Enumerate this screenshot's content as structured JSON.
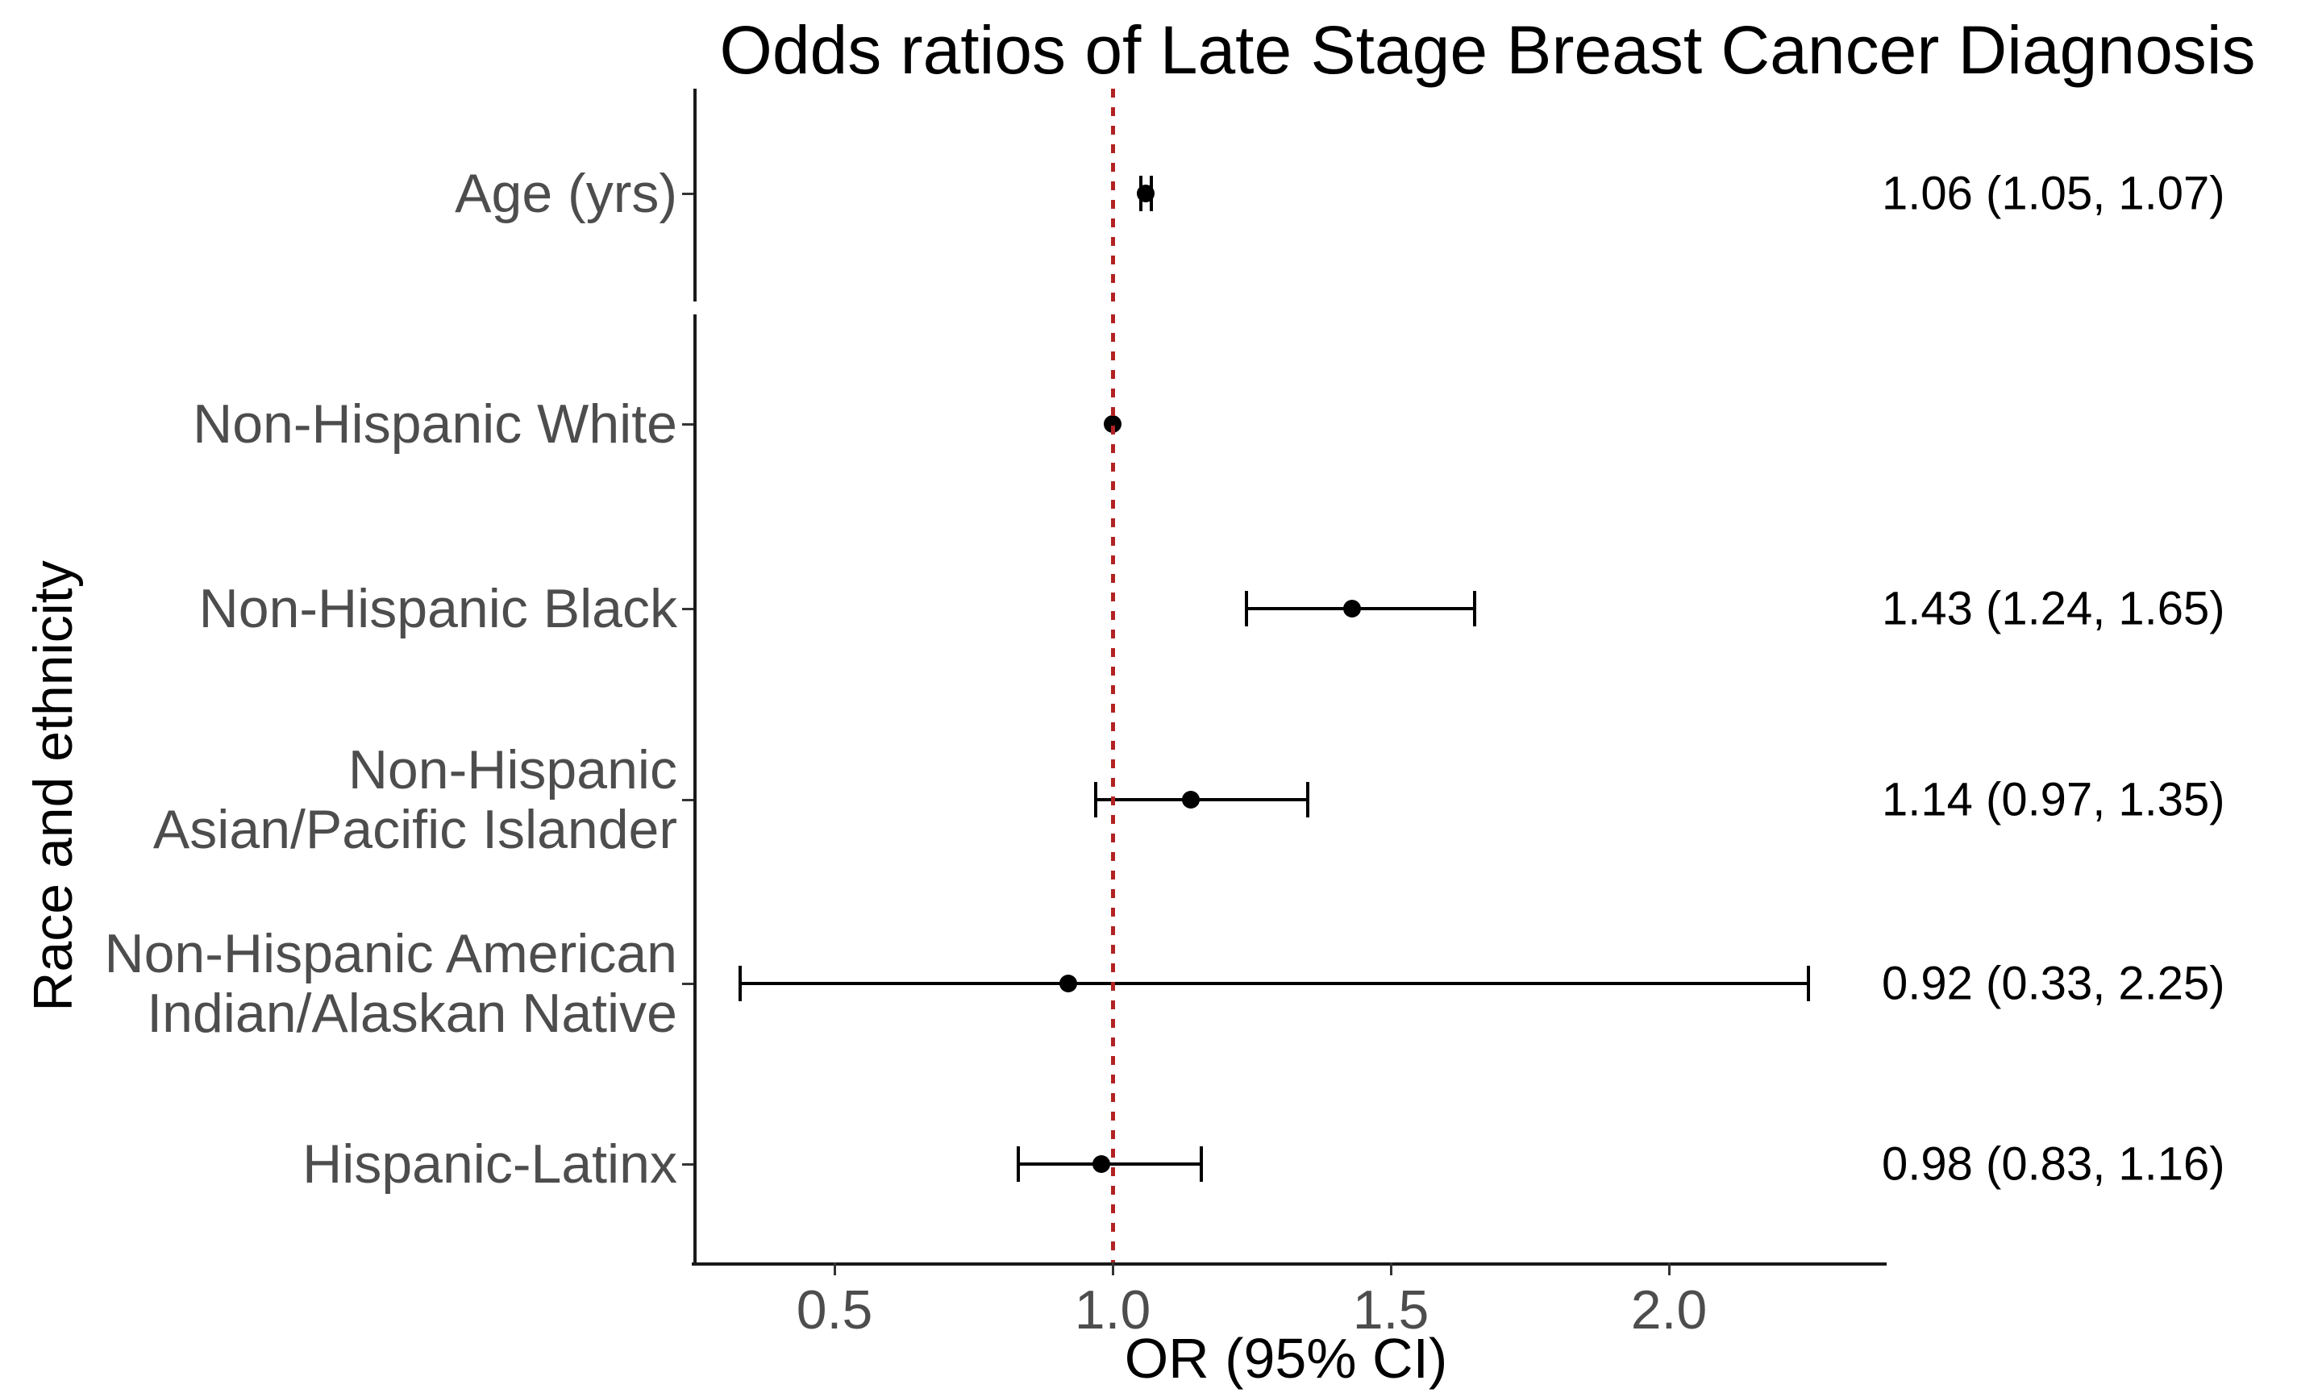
{
  "title": "Odds ratios of Late Stage Breast Cancer Diagnosis",
  "chart_data": {
    "type": "scatter",
    "subtype": "forest-plot",
    "title": "Odds ratios of Late Stage Breast Cancer Diagnosis",
    "xlabel": "OR (95% CI)",
    "ylabel": "Race and ethnicity",
    "xtick_labels": [
      "0.5",
      "1.0",
      "1.5",
      "2.0"
    ],
    "xtick_values": [
      0.5,
      1.0,
      1.5,
      2.0
    ],
    "xlim": [
      0.25,
      2.39
    ],
    "grid": "off",
    "legend": "none",
    "reference_line": {
      "x": 1.0,
      "style": "dashed",
      "color": "#B22222"
    },
    "panels": [
      {
        "name": "age",
        "rows": [
          {
            "label_lines": [
              "Age (yrs)"
            ],
            "or": 1.06,
            "ci_low": 1.05,
            "ci_high": 1.07,
            "annotation": "1.06 (1.05, 1.07)"
          }
        ]
      },
      {
        "name": "race-and-ethnicity",
        "rows": [
          {
            "label_lines": [
              "Non-Hispanic White"
            ],
            "or": 1.0,
            "ci_low": null,
            "ci_high": null,
            "annotation": ""
          },
          {
            "label_lines": [
              "Non-Hispanic Black"
            ],
            "or": 1.43,
            "ci_low": 1.24,
            "ci_high": 1.65,
            "annotation": "1.43 (1.24, 1.65)"
          },
          {
            "label_lines": [
              "Non-Hispanic",
              "Asian/Pacific Islander"
            ],
            "or": 1.14,
            "ci_low": 0.97,
            "ci_high": 1.35,
            "annotation": "1.14 (0.97, 1.35)"
          },
          {
            "label_lines": [
              "Non-Hispanic American",
              "Indian/Alaskan Native"
            ],
            "or": 0.92,
            "ci_low": 0.33,
            "ci_high": 2.25,
            "annotation": "0.92 (0.33, 2.25)"
          },
          {
            "label_lines": [
              "Hispanic-Latinx"
            ],
            "or": 0.98,
            "ci_low": 0.83,
            "ci_high": 1.16,
            "annotation": "0.98 (0.83, 1.16)"
          }
        ]
      }
    ],
    "colors": {
      "point": "#000000",
      "error_bar": "#000000",
      "reference_line": "#B22222",
      "axis_text": "#4D4D4D",
      "axis_line": "#1a1a1a",
      "title_text": "#000000"
    }
  }
}
